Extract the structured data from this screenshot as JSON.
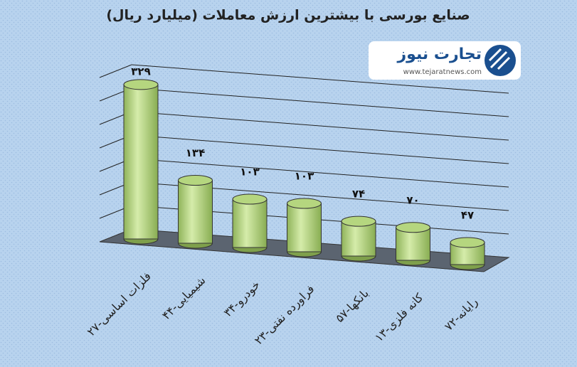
{
  "chart_data": {
    "type": "bar",
    "title": "صنایع بورسی با بیشترین ارزش معاملات  (میلیارد ریال)",
    "categories": [
      "۲۷-فلزات اساسی",
      "۴۴-شیمیایی",
      "۳۴-خودرو",
      "۲۳-فراورده نفتی",
      "۵۷-بانکها",
      "۱۳-کانه فلزی",
      "۷۲-رایانه"
    ],
    "values": [
      329,
      134,
      103,
      103,
      74,
      70,
      47
    ],
    "value_labels": [
      "۳۲۹",
      "۱۳۴",
      "۱۰۳",
      "۱۰۳",
      "۷۴",
      "۷۰",
      "۴۷"
    ],
    "color": "#b5d67f",
    "ylim": [
      0,
      350
    ]
  },
  "logo": {
    "name": "تجارت نیوز",
    "url": "www.tejaratnews.com"
  }
}
